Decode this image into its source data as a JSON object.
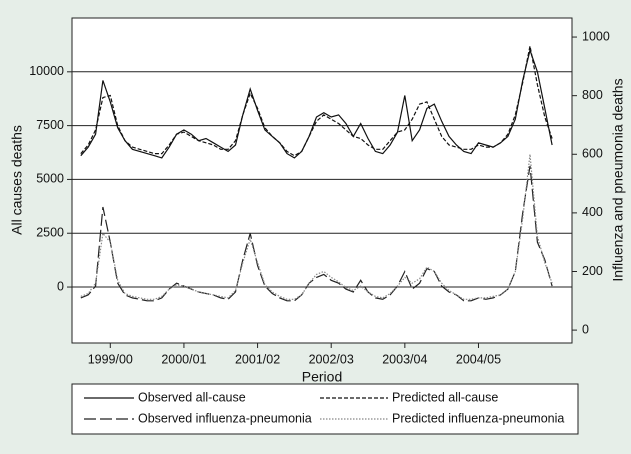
{
  "chart_data": {
    "type": "line",
    "x_label": "Period",
    "y_label": "All causes deaths",
    "y2_label": "Influenza and pneumonia deaths",
    "x": [
      1999.6,
      1999.7,
      1999.8,
      1999.9,
      2000.0,
      2000.1,
      2000.2,
      2000.3,
      2000.4,
      2000.5,
      2000.6,
      2000.7,
      2000.8,
      2000.9,
      2001.0,
      2001.1,
      2001.2,
      2001.3,
      2001.4,
      2001.5,
      2001.6,
      2001.7,
      2001.8,
      2001.9,
      2002.0,
      2002.1,
      2002.2,
      2002.3,
      2002.4,
      2002.5,
      2002.6,
      2002.7,
      2002.8,
      2002.9,
      2003.0,
      2003.1,
      2003.2,
      2003.3,
      2003.4,
      2003.5,
      2003.6,
      2003.7,
      2003.8,
      2003.9,
      2004.0,
      2004.1,
      2004.2,
      2004.3,
      2004.4,
      2004.5,
      2004.6,
      2004.7,
      2004.8,
      2004.9,
      2005.0,
      2005.1,
      2005.2,
      2005.3,
      2005.4,
      2005.5,
      2005.6,
      2005.7,
      2005.8,
      2005.9,
      2006.0
    ],
    "xlim": [
      1999.48,
      2006.27
    ],
    "xticks": [
      {
        "value": 2000,
        "label": "1999/00"
      },
      {
        "value": 2001,
        "label": "2000/01"
      },
      {
        "value": 2002,
        "label": "2001/02"
      },
      {
        "value": 2003,
        "label": "2002/03"
      },
      {
        "value": 2004,
        "label": "2003/04"
      },
      {
        "value": 2005,
        "label": "2004/05"
      }
    ],
    "ylim": [
      -2600,
      12500
    ],
    "yticks": [
      0,
      2500,
      5000,
      7500,
      10000
    ],
    "y2lim": [
      -44,
      1065
    ],
    "y2ticks": [
      0,
      200,
      400,
      600,
      800,
      1000
    ],
    "grid": true,
    "series": [
      {
        "name": "Observed all-cause",
        "color": "#111111",
        "values": [
          6100,
          6500,
          7100,
          9600,
          8600,
          7400,
          6800,
          6400,
          6300,
          6200,
          6100,
          6000,
          6500,
          7100,
          7300,
          7100,
          6800,
          6900,
          6700,
          6500,
          6300,
          6600,
          8000,
          9200,
          8200,
          7300,
          7000,
          6700,
          6200,
          6000,
          6300,
          7000,
          7900,
          8100,
          7900,
          8000,
          7600,
          7000,
          7600,
          6900,
          6300,
          6200,
          6600,
          7200,
          8900,
          6800,
          7300,
          8300,
          8500,
          7700,
          7000,
          6600,
          6300,
          6200,
          6700,
          6600,
          6500,
          6700,
          7000,
          7800,
          9600,
          11000,
          10000,
          8300,
          6600
        ]
      },
      {
        "name": "Predicted all-cause",
        "color": "#111111",
        "values": [
          6200,
          6600,
          7300,
          8800,
          8900,
          7500,
          6800,
          6500,
          6400,
          6300,
          6200,
          6200,
          6600,
          7100,
          7200,
          7000,
          6800,
          6700,
          6600,
          6400,
          6400,
          6800,
          8000,
          9000,
          8300,
          7400,
          7000,
          6700,
          6300,
          6100,
          6300,
          7000,
          7700,
          8000,
          7800,
          7600,
          7300,
          7000,
          6900,
          6600,
          6400,
          6400,
          6800,
          7200,
          7300,
          7800,
          8500,
          8600,
          7800,
          7000,
          6600,
          6500,
          6400,
          6400,
          6600,
          6500,
          6500,
          6700,
          7100,
          8000,
          9500,
          11200,
          9400,
          7900,
          6900
        ]
      },
      {
        "name": "Observed influenza-pneumonia",
        "color": "#222222",
        "axis": "y2",
        "values": [
          110,
          120,
          150,
          420,
          300,
          160,
          120,
          110,
          105,
          100,
          100,
          110,
          140,
          160,
          150,
          140,
          130,
          125,
          120,
          110,
          105,
          130,
          240,
          330,
          220,
          150,
          125,
          110,
          100,
          100,
          120,
          160,
          180,
          190,
          170,
          160,
          140,
          130,
          170,
          130,
          110,
          105,
          120,
          150,
          200,
          140,
          160,
          210,
          200,
          150,
          130,
          120,
          100,
          100,
          110,
          105,
          110,
          120,
          140,
          200,
          400,
          560,
          300,
          240,
          150
        ]
      },
      {
        "name": "Predicted influenza-pneumonia",
        "color": "#888888",
        "axis": "y2",
        "values": [
          115,
          125,
          160,
          330,
          300,
          170,
          125,
          115,
          110,
          105,
          105,
          115,
          140,
          155,
          150,
          140,
          130,
          125,
          120,
          115,
          110,
          135,
          230,
          310,
          230,
          155,
          130,
          115,
          105,
          105,
          120,
          160,
          190,
          200,
          180,
          165,
          145,
          135,
          150,
          130,
          115,
          110,
          125,
          150,
          180,
          160,
          175,
          215,
          200,
          160,
          135,
          120,
          105,
          105,
          110,
          110,
          115,
          120,
          140,
          200,
          380,
          600,
          320,
          230,
          160
        ]
      }
    ]
  }
}
